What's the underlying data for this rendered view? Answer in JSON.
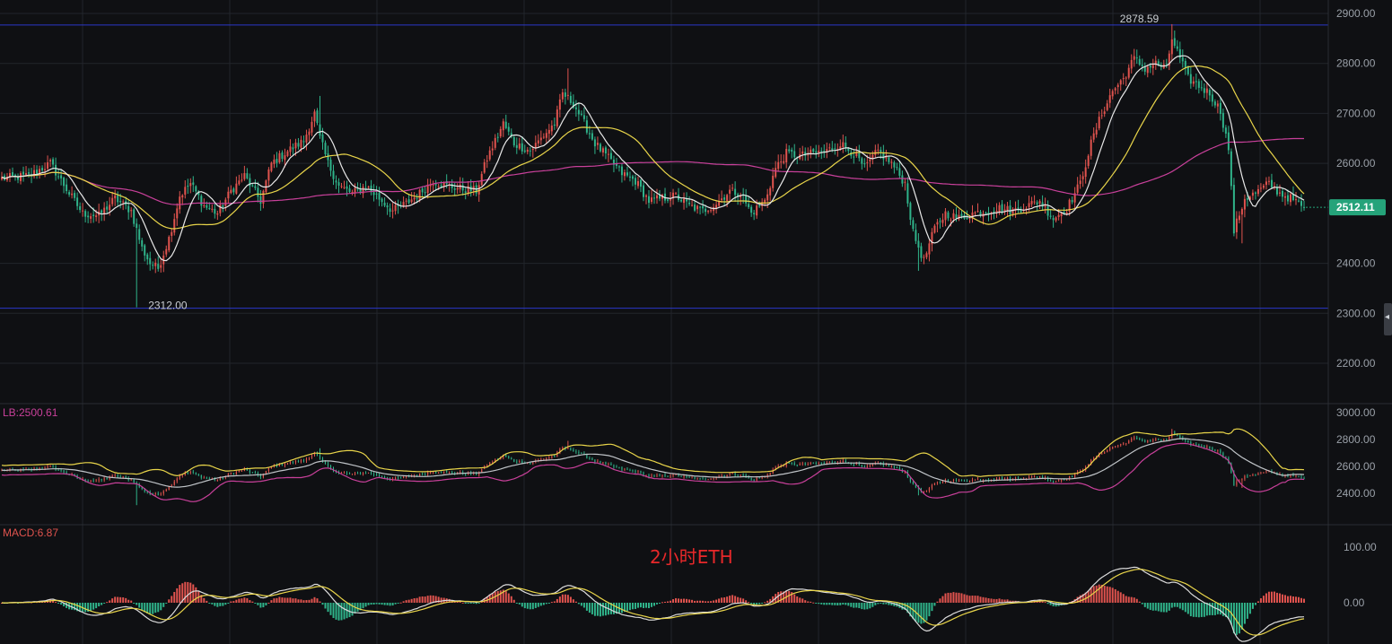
{
  "colors": {
    "background": "#0f1013",
    "grid": "#22252b",
    "up": "#e0534e",
    "down": "#2fb38a",
    "ma_fast": "#e8e8e8",
    "ma_mid": "#e9d54a",
    "ma_slow": "#c8409a",
    "hline": "#2b37c9",
    "last_price_bg": "#25a37a",
    "annotation": "#e8282a"
  },
  "annotation_text": "2小时ETH",
  "chart_data": [
    {
      "type": "candlestick",
      "name": "main",
      "ylim": [
        2150,
        2920
      ],
      "y_ticks": [
        "2900.00",
        "2800.00",
        "2700.00",
        "2600.00",
        "2400.00",
        "2300.00",
        "2200.00"
      ],
      "high_label": "2878.59",
      "low_label": "2312.00",
      "high_value": 2878.59,
      "low_value": 2312.0,
      "last_price": "2512.11",
      "last_price_value": 2512.11,
      "anchors_close": [
        [
          0,
          2570
        ],
        [
          10,
          2575
        ],
        [
          18,
          2600
        ],
        [
          25,
          2540
        ],
        [
          30,
          2500
        ],
        [
          36,
          2495
        ],
        [
          42,
          2530
        ],
        [
          48,
          2505
        ],
        [
          52,
          2430
        ],
        [
          55,
          2400
        ],
        [
          58,
          2390
        ],
        [
          62,
          2450
        ],
        [
          66,
          2535
        ],
        [
          70,
          2560
        ],
        [
          75,
          2515
        ],
        [
          80,
          2500
        ],
        [
          85,
          2545
        ],
        [
          90,
          2575
        ],
        [
          96,
          2525
        ],
        [
          100,
          2600
        ],
        [
          106,
          2625
        ],
        [
          112,
          2645
        ],
        [
          116,
          2700
        ],
        [
          118,
          2650
        ],
        [
          121,
          2600
        ],
        [
          125,
          2555
        ],
        [
          130,
          2540
        ],
        [
          135,
          2555
        ],
        [
          140,
          2530
        ],
        [
          145,
          2505
        ],
        [
          150,
          2520
        ],
        [
          155,
          2540
        ],
        [
          160,
          2565
        ],
        [
          165,
          2555
        ],
        [
          170,
          2550
        ],
        [
          176,
          2545
        ],
        [
          180,
          2610
        ],
        [
          186,
          2680
        ],
        [
          190,
          2640
        ],
        [
          196,
          2625
        ],
        [
          200,
          2650
        ],
        [
          205,
          2680
        ],
        [
          208,
          2740
        ],
        [
          212,
          2720
        ],
        [
          216,
          2680
        ],
        [
          220,
          2640
        ],
        [
          225,
          2610
        ],
        [
          230,
          2580
        ],
        [
          235,
          2565
        ],
        [
          240,
          2525
        ],
        [
          245,
          2530
        ],
        [
          250,
          2535
        ],
        [
          255,
          2515
        ],
        [
          260,
          2505
        ],
        [
          265,
          2520
        ],
        [
          270,
          2545
        ],
        [
          274,
          2540
        ],
        [
          278,
          2500
        ],
        [
          283,
          2525
        ],
        [
          287,
          2590
        ],
        [
          291,
          2620
        ],
        [
          296,
          2615
        ],
        [
          301,
          2620
        ],
        [
          306,
          2625
        ],
        [
          311,
          2640
        ],
        [
          316,
          2620
        ],
        [
          320,
          2590
        ],
        [
          325,
          2625
        ],
        [
          330,
          2600
        ],
        [
          335,
          2560
        ],
        [
          338,
          2460
        ],
        [
          342,
          2405
        ],
        [
          346,
          2470
        ],
        [
          350,
          2500
        ],
        [
          355,
          2490
        ],
        [
          360,
          2500
        ],
        [
          365,
          2505
        ],
        [
          370,
          2510
        ],
        [
          375,
          2505
        ],
        [
          380,
          2515
        ],
        [
          385,
          2525
        ],
        [
          390,
          2490
        ],
        [
          395,
          2510
        ],
        [
          400,
          2560
        ],
        [
          404,
          2640
        ],
        [
          408,
          2700
        ],
        [
          412,
          2745
        ],
        [
          416,
          2770
        ],
        [
          420,
          2810
        ],
        [
          424,
          2790
        ],
        [
          428,
          2800
        ],
        [
          432,
          2790
        ],
        [
          434,
          2850
        ],
        [
          437,
          2810
        ],
        [
          440,
          2770
        ],
        [
          444,
          2755
        ],
        [
          448,
          2740
        ],
        [
          452,
          2705
        ],
        [
          455,
          2630
        ],
        [
          457,
          2465
        ],
        [
          461,
          2530
        ],
        [
          465,
          2540
        ],
        [
          470,
          2560
        ],
        [
          474,
          2540
        ],
        [
          478,
          2530
        ],
        [
          483,
          2512
        ]
      ],
      "ma_fast_note": "white ~9",
      "ma_mid_note": "yellow ~30",
      "ma_slow_note": "magenta ~99"
    },
    {
      "type": "bollinger",
      "name": "boll",
      "label": "LB:2500.61",
      "ylim": [
        2330,
        3000
      ],
      "y_ticks": [
        "3000.00",
        "2800.00",
        "2600.00",
        "2400.00"
      ]
    },
    {
      "type": "macd",
      "name": "macd",
      "label": "MACD:6.87",
      "ylim": [
        -70,
        115
      ],
      "y_ticks": [
        "100.00",
        "0.00"
      ]
    }
  ]
}
